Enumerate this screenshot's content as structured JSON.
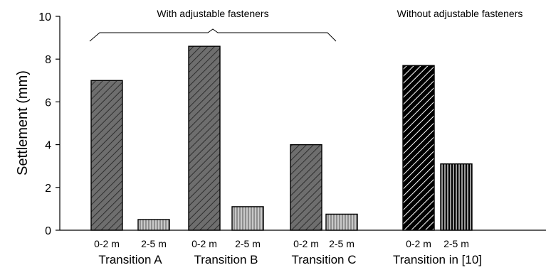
{
  "chart_data": {
    "type": "bar",
    "ylabel": "Settlement (mm)",
    "ylim": [
      0,
      10
    ],
    "yticks": [
      0,
      2,
      4,
      6,
      8,
      10
    ],
    "groups": [
      {
        "label": "Transition A",
        "bars": [
          {
            "category": "0-2 m",
            "value": 7.0,
            "color": "#6e6e6e",
            "pattern": "diagonal"
          },
          {
            "category": "2-5 m",
            "value": 0.5,
            "color": "#c8c8c8",
            "pattern": "vertical"
          }
        ]
      },
      {
        "label": "Transition B",
        "bars": [
          {
            "category": "0-2 m",
            "value": 8.6,
            "color": "#6e6e6e",
            "pattern": "diagonal"
          },
          {
            "category": "2-5 m",
            "value": 1.1,
            "color": "#c8c8c8",
            "pattern": "vertical"
          }
        ]
      },
      {
        "label": "Transition C",
        "bars": [
          {
            "category": "0-2 m",
            "value": 4.0,
            "color": "#6e6e6e",
            "pattern": "diagonal"
          },
          {
            "category": "2-5 m",
            "value": 0.75,
            "color": "#c8c8c8",
            "pattern": "vertical"
          }
        ]
      },
      {
        "label": "Transition in [10]",
        "bars": [
          {
            "category": "0-2 m",
            "value": 7.7,
            "color": "#000000",
            "pattern": "diagonal-white"
          },
          {
            "category": "2-5 m",
            "value": 3.1,
            "color": "#000000",
            "pattern": "vertical-white"
          }
        ]
      }
    ],
    "annotations": [
      {
        "text": "With adjustable fasteners",
        "bracket": true
      },
      {
        "text": "Without adjustable fasteners",
        "bracket": false
      }
    ]
  }
}
